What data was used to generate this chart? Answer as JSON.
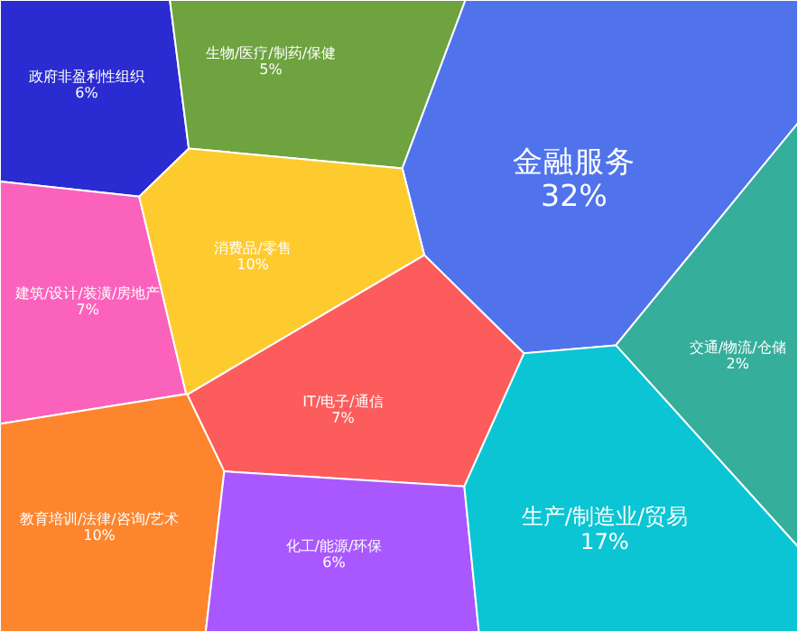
{
  "chart_data": {
    "type": "other",
    "categories": [
      "政府非盈利性组织",
      "生物/医疗/制药/保健",
      "金融服务",
      "建筑/设计/装潢/房地产",
      "消费品/零售",
      "IT/电子/通信",
      "交通/物流/仓储",
      "教育培训/法律/咨询/艺术",
      "化工/能源/环保",
      "生产/制造业/贸易"
    ],
    "values": [
      6,
      5,
      32,
      7,
      10,
      7,
      2,
      10,
      6,
      17
    ],
    "value_labels": [
      "6%",
      "5%",
      "32%",
      "7%",
      "10%",
      "7%",
      "2%",
      "10%",
      "6%",
      "17%"
    ],
    "colors": [
      "#2a2bd0",
      "#6ea340",
      "#5073ec",
      "#fb62bc",
      "#fecb2f",
      "#fc5c5b",
      "#35ae9b",
      "#fd852d",
      "#a957fe",
      "#0bc5d4"
    ]
  }
}
